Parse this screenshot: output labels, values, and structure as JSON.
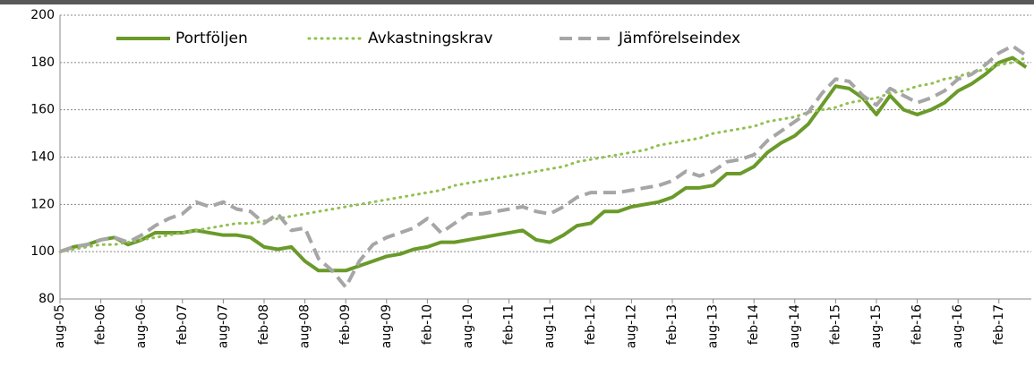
{
  "chart_data": {
    "type": "line",
    "categories": [
      "aug-05",
      null,
      null,
      "feb-06",
      null,
      null,
      "aug-06",
      null,
      null,
      "feb-07",
      null,
      null,
      "aug-07",
      null,
      null,
      "feb-08",
      null,
      null,
      "aug-08",
      null,
      null,
      "feb-09",
      null,
      null,
      "aug-09",
      null,
      null,
      "feb-10",
      null,
      null,
      "aug-10",
      null,
      null,
      "feb-11",
      null,
      null,
      "aug-11",
      null,
      null,
      "feb-12",
      null,
      null,
      "aug-12",
      null,
      null,
      "feb-13",
      null,
      null,
      "aug-13",
      null,
      null,
      "feb-14",
      null,
      null,
      "aug-14",
      null,
      null,
      "feb-15",
      null,
      null,
      "aug-15",
      null,
      null,
      "feb-16",
      null,
      null,
      "aug-16",
      null,
      null,
      "feb-17",
      null,
      null
    ],
    "series": [
      {
        "name": "Portföljen",
        "color": "#6a9a2a",
        "style": "solid",
        "values": [
          100,
          102,
          103,
          105,
          106,
          103,
          105,
          108,
          108,
          108,
          109,
          108,
          107,
          107,
          106,
          102,
          101,
          102,
          96,
          92,
          92,
          92,
          94,
          96,
          98,
          99,
          101,
          102,
          104,
          104,
          105,
          106,
          107,
          108,
          109,
          105,
          104,
          107,
          111,
          112,
          117,
          117,
          119,
          120,
          121,
          123,
          127,
          127,
          128,
          133,
          133,
          136,
          142,
          146,
          149,
          154,
          162,
          170,
          169,
          165,
          158,
          166,
          160,
          158,
          160,
          163,
          168,
          171,
          175,
          180,
          182,
          178
        ]
      },
      {
        "name": "Avkastningskrav",
        "color": "#92c050",
        "style": "dotted",
        "values": [
          100,
          101,
          102,
          103,
          103,
          104,
          105,
          106,
          107,
          108,
          109,
          110,
          111,
          112,
          112,
          113,
          114,
          115,
          116,
          117,
          118,
          119,
          120,
          121,
          122,
          123,
          124,
          125,
          126,
          128,
          129,
          130,
          131,
          132,
          133,
          134,
          135,
          136,
          138,
          139,
          140,
          141,
          142,
          143,
          145,
          146,
          147,
          148,
          150,
          151,
          152,
          153,
          155,
          156,
          157,
          159,
          160,
          161,
          163,
          164,
          165,
          167,
          168,
          170,
          171,
          173,
          174,
          176,
          177,
          179,
          180,
          182
        ]
      },
      {
        "name": "Jämförelseindex",
        "color": "#a6a6a6",
        "style": "dashed",
        "values": [
          100,
          102,
          103,
          105,
          106,
          104,
          107,
          111,
          114,
          116,
          121,
          119,
          121,
          118,
          117,
          112,
          116,
          109,
          110,
          97,
          92,
          85,
          96,
          103,
          106,
          108,
          110,
          114,
          108,
          112,
          116,
          116,
          117,
          118,
          119,
          117,
          116,
          119,
          123,
          125,
          125,
          125,
          126,
          127,
          128,
          130,
          134,
          132,
          134,
          138,
          139,
          141,
          147,
          151,
          155,
          159,
          167,
          173,
          172,
          166,
          162,
          169,
          166,
          163,
          165,
          168,
          173,
          175,
          179,
          184,
          187,
          183
        ]
      }
    ],
    "ylim": [
      80,
      200
    ],
    "yticks": [
      80,
      100,
      120,
      140,
      160,
      180,
      200
    ],
    "grid": true,
    "legend": "top"
  }
}
